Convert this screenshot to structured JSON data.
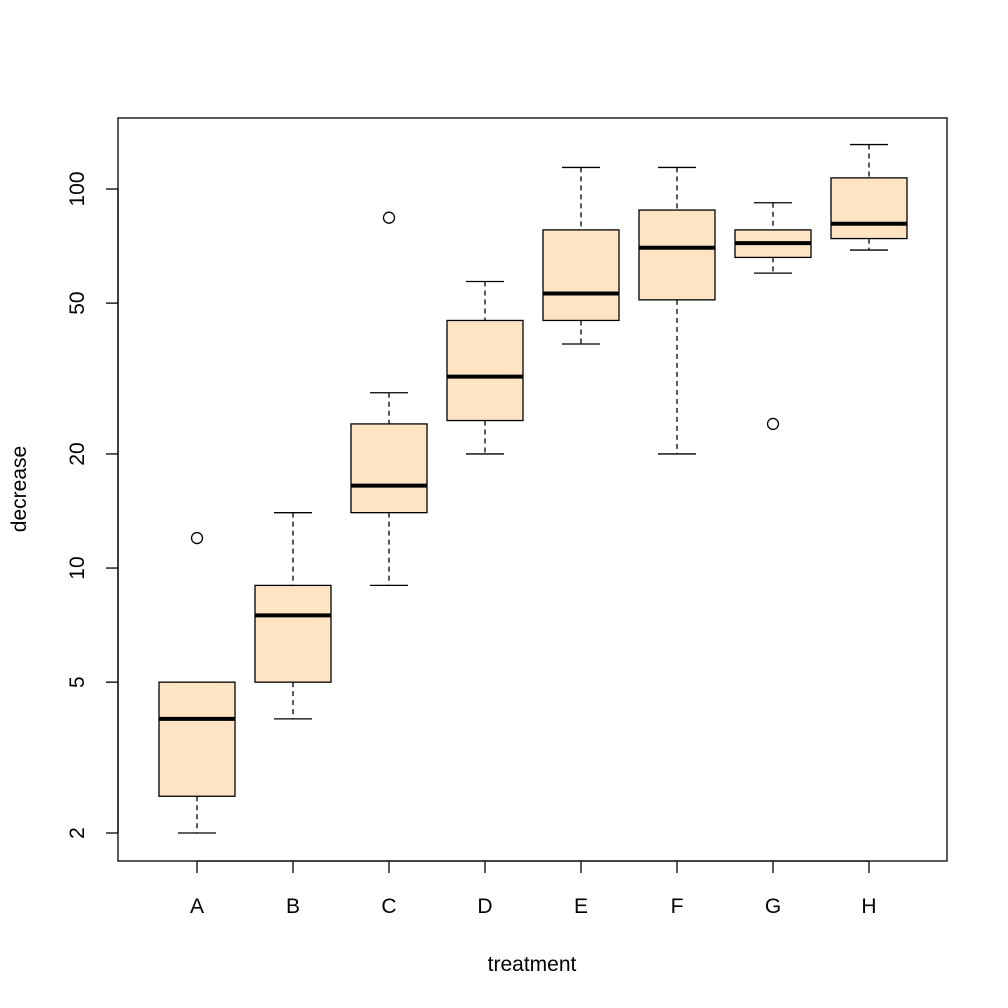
{
  "chart_data": {
    "type": "boxplot",
    "title": "",
    "xlabel": "treatment",
    "ylabel": "decrease",
    "y_scale": "log",
    "ylim": [
      1.8,
      140
    ],
    "y_ticks": [
      2,
      5,
      10,
      20,
      50,
      100
    ],
    "y_tick_labels": [
      "2",
      "5",
      "10",
      "20",
      "50",
      "100"
    ],
    "categories": [
      "A",
      "B",
      "C",
      "D",
      "E",
      "F",
      "G",
      "H"
    ],
    "box_fill": "#FFE4C4",
    "grid": false,
    "boxes": [
      {
        "name": "A",
        "whisker_low": 2,
        "q1": 2.5,
        "median": 4,
        "q3": 5,
        "whisker_high": 5,
        "outliers": [
          12
        ]
      },
      {
        "name": "B",
        "whisker_low": 4,
        "q1": 5,
        "median": 7.5,
        "q3": 9,
        "whisker_high": 14,
        "outliers": []
      },
      {
        "name": "C",
        "whisker_low": 9,
        "q1": 14,
        "median": 16.5,
        "q3": 24,
        "whisker_high": 29,
        "outliers": [
          84
        ]
      },
      {
        "name": "D",
        "whisker_low": 20,
        "q1": 24.5,
        "median": 32,
        "q3": 45,
        "whisker_high": 57,
        "outliers": []
      },
      {
        "name": "E",
        "whisker_low": 39,
        "q1": 45,
        "median": 53,
        "q3": 78,
        "whisker_high": 114,
        "outliers": []
      },
      {
        "name": "F",
        "whisker_low": 20,
        "q1": 51,
        "median": 70,
        "q3": 88,
        "whisker_high": 114,
        "outliers": []
      },
      {
        "name": "G",
        "whisker_low": 60,
        "q1": 66,
        "median": 72,
        "q3": 78,
        "whisker_high": 92,
        "outliers": [
          24
        ]
      },
      {
        "name": "H",
        "whisker_low": 69,
        "q1": 74,
        "median": 81,
        "q3": 107,
        "whisker_high": 131,
        "outliers": []
      }
    ]
  }
}
